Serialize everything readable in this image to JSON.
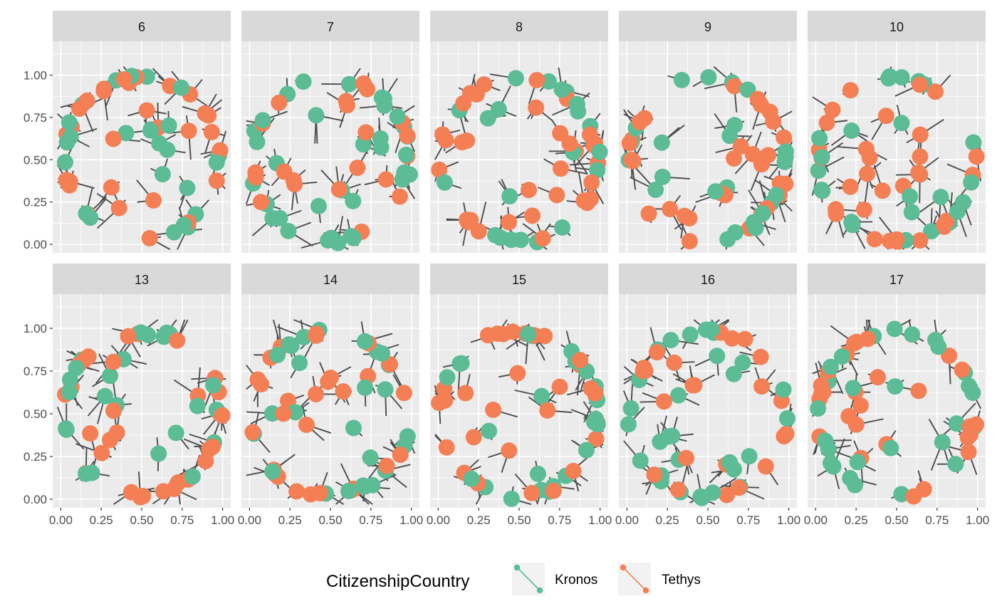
{
  "chart_data": {
    "type": "network-facet",
    "panels": [
      "6",
      "7",
      "8",
      "9",
      "10",
      "13",
      "14",
      "15",
      "16",
      "17"
    ],
    "x_ticks": [
      "0.00",
      "0.25",
      "0.50",
      "0.75",
      "1.00"
    ],
    "y_ticks": [
      "0.00",
      "0.25",
      "0.50",
      "0.75",
      "1.00"
    ],
    "xlim": [
      0,
      1
    ],
    "ylim": [
      0,
      1
    ],
    "layout": "circular-graph",
    "nodes_per_panel": 55,
    "legend": {
      "title": "CitizenshipCountry",
      "placement": "bottom",
      "entries": [
        {
          "label": "Kronos",
          "color": "#5bbc96"
        },
        {
          "label": "Tethys",
          "color": "#f47f55"
        }
      ]
    },
    "edge_color": "#4d4d4d",
    "panel_background": "#ebebeb",
    "strip_background": "#d9d9d9",
    "grid": true
  }
}
